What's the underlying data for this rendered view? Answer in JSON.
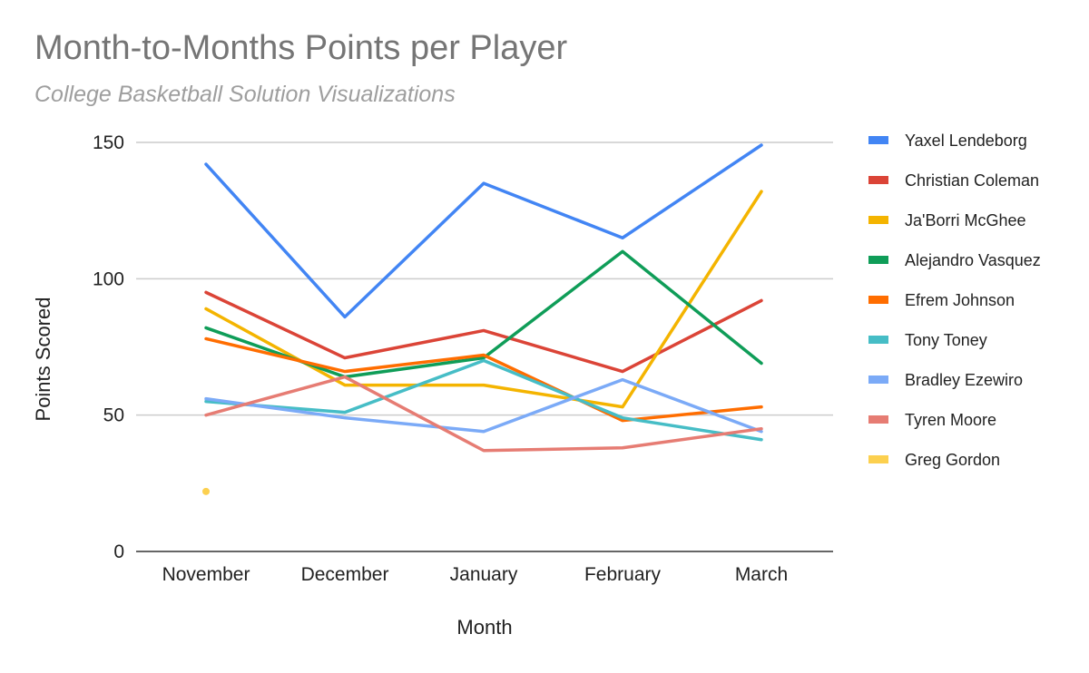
{
  "chart_data": {
    "type": "line",
    "title": "Month-to-Months Points per Player",
    "subtitle": "College Basketball Solution Visualizations",
    "xlabel": "Month",
    "ylabel": "Points Scored",
    "categories": [
      "November",
      "December",
      "January",
      "February",
      "March"
    ],
    "ylim": [
      0,
      150
    ],
    "yticks": [
      0,
      50,
      100,
      150
    ],
    "grid": true,
    "legend": "right",
    "series": [
      {
        "name": "Yaxel Lendeborg",
        "color": "#4285f4",
        "values": [
          142,
          86,
          135,
          115,
          149
        ]
      },
      {
        "name": "Christian Coleman",
        "color": "#db4437",
        "values": [
          95,
          71,
          81,
          66,
          92
        ]
      },
      {
        "name": "Ja'Borri McGhee",
        "color": "#f4b400",
        "values": [
          89,
          61,
          61,
          53,
          132
        ]
      },
      {
        "name": "Alejandro Vasquez",
        "color": "#0f9d58",
        "values": [
          82,
          64,
          71,
          110,
          69
        ]
      },
      {
        "name": "Efrem Johnson",
        "color": "#ff6d00",
        "values": [
          78,
          66,
          72,
          48,
          53
        ]
      },
      {
        "name": "Tony Toney",
        "color": "#46bdc6",
        "values": [
          55,
          51,
          70,
          49,
          41
        ]
      },
      {
        "name": "Bradley Ezewiro",
        "color": "#7baaf7",
        "values": [
          56,
          49,
          44,
          63,
          44
        ]
      },
      {
        "name": "Tyren Moore",
        "color": "#e67c73",
        "values": [
          50,
          64,
          37,
          38,
          45
        ]
      },
      {
        "name": "Greg Gordon",
        "color": "#fcd04f",
        "values": [
          22,
          null,
          null,
          null,
          null
        ]
      }
    ]
  }
}
